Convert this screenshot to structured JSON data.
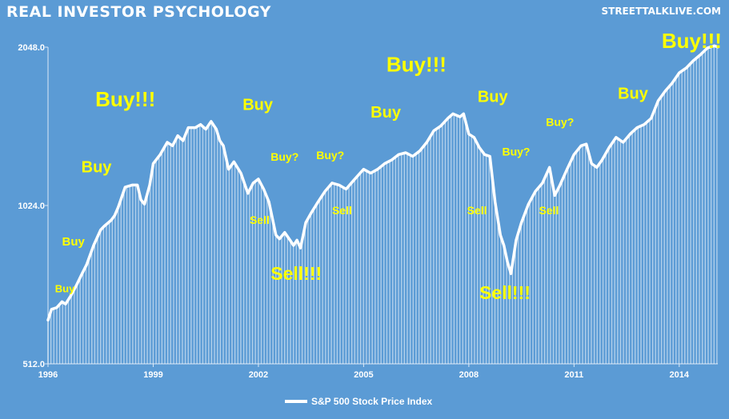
{
  "title": "REAL INVESTOR PSYCHOLOGY",
  "source": "STREETTALKLIVE.COM",
  "colors": {
    "background": "#5b9bd5",
    "line": "#ffffff",
    "annotation": "#ffff00"
  },
  "chart_data": {
    "type": "area",
    "title": "REAL INVESTOR PSYCHOLOGY",
    "xlabel": "",
    "ylabel": "",
    "y_scale": "log2",
    "ylim": [
      512,
      2048
    ],
    "xlim": [
      1996,
      2015.1
    ],
    "y_ticks": [
      "512.0",
      "1024.0",
      "2048.0"
    ],
    "x_ticks": [
      "1996",
      "1999",
      "2002",
      "2005",
      "2008",
      "2011",
      "2014"
    ],
    "legend": {
      "position": "bottom",
      "entries": [
        "S&P 500 Stock Price Index"
      ]
    },
    "grid": "vertical",
    "series": [
      {
        "name": "S&P 500 Stock Price Index",
        "x": [
          1996.0,
          1996.1,
          1996.25,
          1996.4,
          1996.5,
          1996.65,
          1996.8,
          1996.95,
          1997.1,
          1997.3,
          1997.5,
          1997.6,
          1997.8,
          1997.9,
          1998.0,
          1998.2,
          1998.4,
          1998.55,
          1998.65,
          1998.75,
          1998.9,
          1999.0,
          1999.2,
          1999.4,
          1999.55,
          1999.7,
          1999.85,
          2000.0,
          2000.2,
          2000.35,
          2000.5,
          2000.65,
          2000.8,
          2000.9,
          2001.0,
          2001.15,
          2001.3,
          2001.5,
          2001.7,
          2001.85,
          2002.0,
          2002.15,
          2002.3,
          2002.5,
          2002.6,
          2002.75,
          2002.9,
          2003.0,
          2003.1,
          2003.2,
          2003.35,
          2003.5,
          2003.7,
          2003.9,
          2004.1,
          2004.3,
          2004.5,
          2004.7,
          2004.9,
          2005.0,
          2005.2,
          2005.4,
          2005.6,
          2005.8,
          2006.0,
          2006.2,
          2006.4,
          2006.6,
          2006.8,
          2007.0,
          2007.2,
          2007.4,
          2007.55,
          2007.75,
          2007.85,
          2008.0,
          2008.15,
          2008.3,
          2008.45,
          2008.6,
          2008.75,
          2008.9,
          2009.0,
          2009.1,
          2009.2,
          2009.35,
          2009.5,
          2009.7,
          2009.9,
          2010.1,
          2010.3,
          2010.45,
          2010.6,
          2010.8,
          2011.0,
          2011.2,
          2011.35,
          2011.5,
          2011.65,
          2011.8,
          2012.0,
          2012.2,
          2012.4,
          2012.6,
          2012.8,
          2013.0,
          2013.2,
          2013.4,
          2013.6,
          2013.8,
          2014.0,
          2014.2,
          2014.4,
          2014.6,
          2014.8,
          2015.0,
          2015.1
        ],
        "y": [
          620,
          650,
          655,
          672,
          665,
          690,
          720,
          755,
          790,
          860,
          920,
          935,
          960,
          980,
          1015,
          1110,
          1120,
          1120,
          1050,
          1030,
          1120,
          1230,
          1280,
          1350,
          1330,
          1390,
          1360,
          1440,
          1440,
          1460,
          1430,
          1480,
          1430,
          1360,
          1330,
          1200,
          1240,
          1180,
          1080,
          1130,
          1150,
          1100,
          1040,
          900,
          885,
          910,
          880,
          860,
          880,
          850,
          950,
          990,
          1040,
          1090,
          1130,
          1120,
          1100,
          1140,
          1180,
          1200,
          1180,
          1200,
          1230,
          1250,
          1280,
          1290,
          1270,
          1300,
          1350,
          1420,
          1450,
          1500,
          1530,
          1510,
          1530,
          1400,
          1380,
          1320,
          1280,
          1270,
          1040,
          900,
          860,
          800,
          760,
          880,
          950,
          1030,
          1090,
          1130,
          1210,
          1070,
          1120,
          1200,
          1280,
          1330,
          1340,
          1230,
          1210,
          1250,
          1320,
          1380,
          1350,
          1400,
          1440,
          1460,
          1500,
          1620,
          1690,
          1750,
          1830,
          1870,
          1930,
          1980,
          2040,
          2060,
          2050
        ]
      }
    ],
    "annotations": [
      {
        "text": "Buy",
        "x": 1996.2,
        "y": 700,
        "size": 13
      },
      {
        "text": "Buy",
        "x": 1996.4,
        "y": 860,
        "size": 15
      },
      {
        "text": "Buy",
        "x": 1996.95,
        "y": 1185,
        "size": 20
      },
      {
        "text": "Buy!!!",
        "x": 1997.35,
        "y": 1580,
        "size": 26
      },
      {
        "text": "Buy",
        "x": 2001.55,
        "y": 1555,
        "size": 20
      },
      {
        "text": "Sell",
        "x": 2001.75,
        "y": 945,
        "size": 14
      },
      {
        "text": "Buy?",
        "x": 2002.35,
        "y": 1245,
        "size": 14
      },
      {
        "text": "Sell!!!",
        "x": 2002.35,
        "y": 740,
        "size": 23
      },
      {
        "text": "Buy?",
        "x": 2003.65,
        "y": 1255,
        "size": 14
      },
      {
        "text": "Sell",
        "x": 2004.1,
        "y": 985,
        "size": 14
      },
      {
        "text": "Buy",
        "x": 2005.2,
        "y": 1505,
        "size": 20
      },
      {
        "text": "Buy!!!",
        "x": 2005.65,
        "y": 1840,
        "size": 26
      },
      {
        "text": "Sell",
        "x": 2007.95,
        "y": 985,
        "size": 14
      },
      {
        "text": "Buy",
        "x": 2008.25,
        "y": 1610,
        "size": 20
      },
      {
        "text": "Buy?",
        "x": 2008.95,
        "y": 1275,
        "size": 14
      },
      {
        "text": "Sell!!!",
        "x": 2008.3,
        "y": 680,
        "size": 23
      },
      {
        "text": "Sell",
        "x": 2010.0,
        "y": 985,
        "size": 14
      },
      {
        "text": "Buy?",
        "x": 2010.2,
        "y": 1450,
        "size": 14
      },
      {
        "text": "Buy",
        "x": 2012.25,
        "y": 1635,
        "size": 20
      },
      {
        "text": "Buy!!!",
        "x": 2013.5,
        "y": 2040,
        "size": 26
      }
    ]
  }
}
